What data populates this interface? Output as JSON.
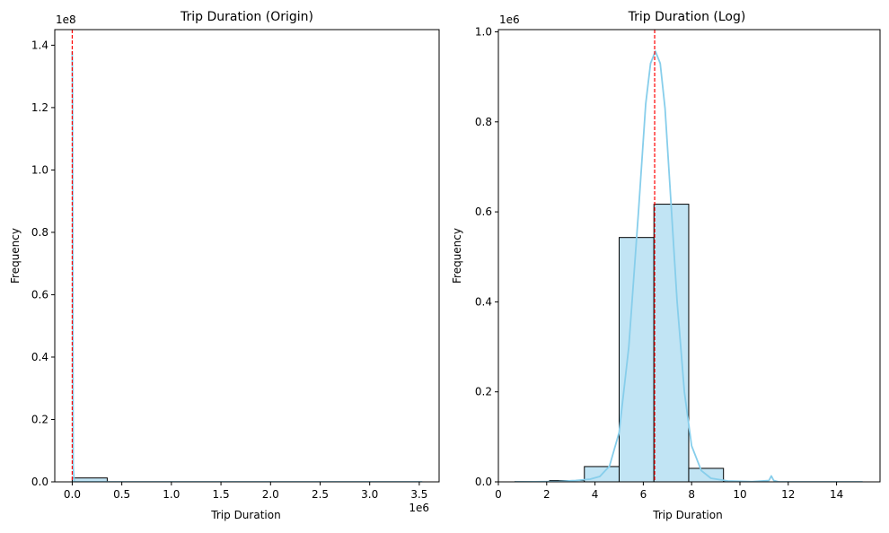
{
  "chart_data": [
    {
      "type": "bar",
      "title": "Trip Duration (Origin)",
      "xlabel": "Trip Duration",
      "ylabel": "Frequency",
      "x_offset_text": "1e6",
      "y_offset_text": "1e8",
      "xlim": [
        -0.176,
        3.7
      ],
      "ylim": [
        0,
        1.45
      ],
      "xticks": [
        0,
        0.5,
        1.0,
        1.5,
        2.0,
        2.5,
        3.0,
        3.5
      ],
      "xtick_labels": [
        "0.0",
        "0.5",
        "1.0",
        "1.5",
        "2.0",
        "2.5",
        "3.0",
        "3.5"
      ],
      "yticks": [
        0,
        0.2,
        0.4,
        0.6,
        0.8,
        1.0,
        1.2,
        1.4
      ],
      "ytick_labels": [
        "0.0",
        "0.2",
        "0.4",
        "0.6",
        "0.8",
        "1.0",
        "1.2",
        "1.4"
      ],
      "bins": [
        {
          "x0": 0.0,
          "x1": 0.353,
          "value": 0.0125
        },
        {
          "x0": 0.353,
          "x1": 0.706,
          "value": 0.0
        },
        {
          "x0": 0.706,
          "x1": 1.059,
          "value": 0.0
        },
        {
          "x0": 1.059,
          "x1": 1.412,
          "value": 0.0
        },
        {
          "x0": 1.412,
          "x1": 1.765,
          "value": 0.0
        },
        {
          "x0": 1.765,
          "x1": 2.118,
          "value": 0.0
        },
        {
          "x0": 2.118,
          "x1": 2.471,
          "value": 0.0
        },
        {
          "x0": 2.471,
          "x1": 2.824,
          "value": 0.0
        },
        {
          "x0": 2.824,
          "x1": 3.177,
          "value": 0.0
        },
        {
          "x0": 3.177,
          "x1": 3.53,
          "value": 0.0
        }
      ],
      "kde": [
        [
          0.0,
          1.38
        ],
        [
          0.003,
          1.25
        ],
        [
          0.006,
          0.6
        ],
        [
          0.01,
          0.05
        ],
        [
          0.02,
          0.0
        ],
        [
          0.5,
          0.0
        ],
        [
          1.0,
          0.0
        ],
        [
          2.0,
          0.0
        ],
        [
          3.0,
          0.0
        ],
        [
          3.53,
          0.0
        ]
      ],
      "mean_line_x": 0.0,
      "bar_color": "#c1e4f4",
      "kde_color": "#87ceeb",
      "mean_line_color": "#ff0000"
    },
    {
      "type": "bar",
      "title": "Trip Duration (Log)",
      "xlabel": "Trip Duration",
      "ylabel": "Frequency",
      "y_offset_text": "1e6",
      "xlim": [
        0,
        15.8
      ],
      "ylim": [
        0,
        1.005
      ],
      "xticks": [
        0,
        2,
        4,
        6,
        8,
        10,
        12,
        14
      ],
      "xtick_labels": [
        "0",
        "2",
        "4",
        "6",
        "8",
        "10",
        "12",
        "14"
      ],
      "yticks": [
        0,
        0.2,
        0.4,
        0.6,
        0.8,
        1.0
      ],
      "ytick_labels": [
        "0.0",
        "0.2",
        "0.4",
        "0.6",
        "0.8",
        "1.0"
      ],
      "bins": [
        {
          "x0": 0.69,
          "x1": 2.12,
          "value": 0.0005
        },
        {
          "x0": 2.12,
          "x1": 3.56,
          "value": 0.003
        },
        {
          "x0": 3.56,
          "x1": 5.0,
          "value": 0.034
        },
        {
          "x0": 5.0,
          "x1": 6.44,
          "value": 0.543
        },
        {
          "x0": 6.44,
          "x1": 7.88,
          "value": 0.617
        },
        {
          "x0": 7.88,
          "x1": 9.32,
          "value": 0.03
        },
        {
          "x0": 9.32,
          "x1": 10.76,
          "value": 0.0008
        },
        {
          "x0": 10.76,
          "x1": 12.2,
          "value": 0.0
        },
        {
          "x0": 12.2,
          "x1": 13.64,
          "value": 0.0
        },
        {
          "x0": 13.64,
          "x1": 15.08,
          "value": 0.0
        }
      ],
      "kde": [
        [
          0.69,
          0.0
        ],
        [
          1.5,
          0.0003
        ],
        [
          2.5,
          0.001
        ],
        [
          3.2,
          0.003
        ],
        [
          3.8,
          0.006
        ],
        [
          4.2,
          0.012
        ],
        [
          4.6,
          0.035
        ],
        [
          5.0,
          0.11
        ],
        [
          5.4,
          0.3
        ],
        [
          5.8,
          0.6
        ],
        [
          6.1,
          0.84
        ],
        [
          6.3,
          0.93
        ],
        [
          6.5,
          0.957
        ],
        [
          6.7,
          0.93
        ],
        [
          6.9,
          0.83
        ],
        [
          7.1,
          0.66
        ],
        [
          7.4,
          0.4
        ],
        [
          7.7,
          0.2
        ],
        [
          8.0,
          0.08
        ],
        [
          8.4,
          0.025
        ],
        [
          8.8,
          0.008
        ],
        [
          9.5,
          0.002
        ],
        [
          10.5,
          0.0005
        ],
        [
          11.2,
          0.003
        ],
        [
          11.3,
          0.013
        ],
        [
          11.4,
          0.003
        ],
        [
          11.6,
          0.0
        ],
        [
          13.0,
          0.0
        ],
        [
          15.08,
          0.0
        ]
      ],
      "mean_line_x": 6.47,
      "bar_color": "#c1e4f4",
      "kde_color": "#87ceeb",
      "mean_line_color": "#ff0000"
    }
  ]
}
